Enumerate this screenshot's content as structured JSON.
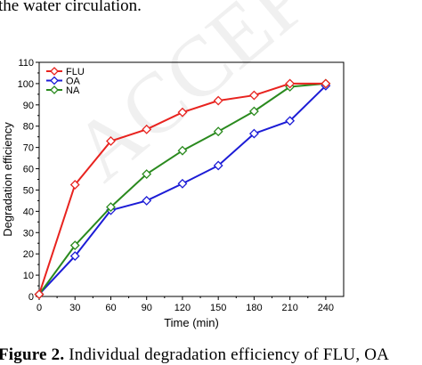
{
  "page": {
    "top_text": "the water circulation.",
    "caption_prefix": "Figure 2.",
    "caption_rest": " Individual degradation efficiency of FLU, OA",
    "watermark": "ACCEPTED MA"
  },
  "chart_data": {
    "type": "line",
    "title": "",
    "xlabel": "Time (min)",
    "ylabel": "Degradation efficiency",
    "xlim": [
      0,
      255
    ],
    "ylim": [
      0,
      110
    ],
    "xticks": [
      0,
      30,
      60,
      90,
      120,
      150,
      180,
      210,
      240
    ],
    "yticks": [
      0,
      10,
      20,
      30,
      40,
      50,
      60,
      70,
      80,
      90,
      100,
      110
    ],
    "grid": false,
    "legend_position": "top-left",
    "series": [
      {
        "name": "FLU",
        "color": "#e8231f",
        "marker": "diamond",
        "x": [
          0,
          30,
          60,
          90,
          120,
          150,
          180,
          210,
          240
        ],
        "y": [
          1,
          52.5,
          73,
          78.5,
          86.5,
          92,
          94.5,
          100,
          100
        ]
      },
      {
        "name": "OA",
        "color": "#1c1cd6",
        "marker": "diamond",
        "x": [
          0,
          30,
          60,
          90,
          120,
          150,
          180,
          210,
          240
        ],
        "y": [
          1,
          19,
          40.5,
          45,
          53,
          61.5,
          76.5,
          82.5,
          99
        ]
      },
      {
        "name": "NA",
        "color": "#2a8a1e",
        "marker": "diamond",
        "x": [
          0,
          30,
          60,
          90,
          120,
          150,
          180,
          210,
          240
        ],
        "y": [
          1,
          24,
          42,
          57.5,
          68.5,
          77.5,
          87,
          98.5,
          100
        ]
      }
    ]
  }
}
